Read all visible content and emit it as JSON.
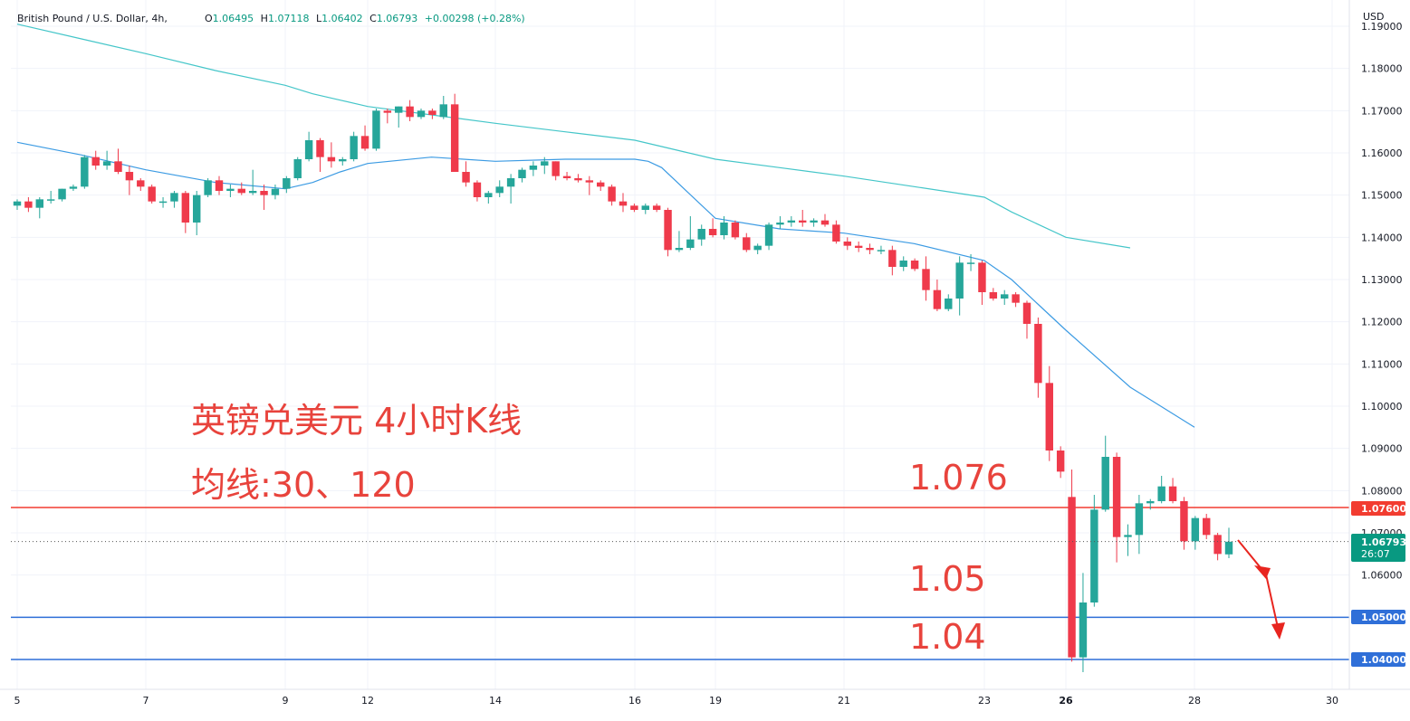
{
  "header": {
    "symbol_label": "British Pound / U.S. Dollar, 4h,",
    "ohlc": {
      "o_label": "O",
      "o_value": "1.06495",
      "h_label": "H",
      "h_value": "1.07118",
      "l_label": "L",
      "l_value": "1.06402",
      "c_label": "C",
      "c_value": "1.06793",
      "change": "+0.00298 (+0.28%)"
    },
    "currency": "USD"
  },
  "annotations": {
    "title": "英镑兑美元 4小时K线",
    "ma_note": "均线:30、120",
    "level_1076": "1.076",
    "level_105": "1.05",
    "level_104": "1.04"
  },
  "price_tags": {
    "level_1076": "1.07600",
    "current_price": "1.06793",
    "countdown": "26:07",
    "level_105": "1.05000",
    "level_104": "1.04000"
  },
  "colors": {
    "up": "#26a69a",
    "down": "#ef3a4b",
    "ma30": "#3c9be3",
    "ma120": "#45c6c9",
    "resistance": "#f23c30",
    "support": "#2f6fd8",
    "annotation": "#e8433c"
  },
  "chart_data": {
    "type": "candlestick",
    "ylim": [
      1.0365,
      1.1915
    ],
    "ytick_labels": [
      "1.19000",
      "1.18000",
      "1.17000",
      "1.16000",
      "1.15000",
      "1.14000",
      "1.13000",
      "1.12000",
      "1.11000",
      "1.10000",
      "1.09000",
      "1.08000",
      "1.07000",
      "1.06000",
      "1.05000",
      "1.04000"
    ],
    "yticks": [
      1.19,
      1.18,
      1.17,
      1.16,
      1.15,
      1.14,
      1.13,
      1.12,
      1.11,
      1.1,
      1.09,
      1.08,
      1.07,
      1.06,
      1.05,
      1.04
    ],
    "xlim": [
      5,
      30.5
    ],
    "xticks": [
      5,
      7,
      9,
      12,
      14,
      16,
      19,
      21,
      23,
      26,
      28,
      30
    ],
    "xtick_labels": [
      "5",
      "7",
      "9",
      "12",
      "14",
      "16",
      "19",
      "21",
      "23",
      "26",
      "28",
      "30"
    ],
    "xtick_bold": [
      "26"
    ],
    "horizontal_lines": [
      {
        "value": 1.076,
        "role": "resistance"
      },
      {
        "value": 1.05,
        "role": "support"
      },
      {
        "value": 1.04,
        "role": "support"
      }
    ],
    "current_price": 1.06793,
    "candles": [
      {
        "o": 1.1475,
        "h": 1.149,
        "l": 1.1465,
        "c": 1.1485
      },
      {
        "o": 1.1485,
        "h": 1.1495,
        "l": 1.146,
        "c": 1.147
      },
      {
        "o": 1.147,
        "h": 1.1495,
        "l": 1.1445,
        "c": 1.149
      },
      {
        "o": 1.149,
        "h": 1.151,
        "l": 1.148,
        "c": 1.149
      },
      {
        "o": 1.149,
        "h": 1.1515,
        "l": 1.1485,
        "c": 1.1515
      },
      {
        "o": 1.1515,
        "h": 1.1525,
        "l": 1.151,
        "c": 1.152
      },
      {
        "o": 1.152,
        "h": 1.1595,
        "l": 1.1515,
        "c": 1.159
      },
      {
        "o": 1.159,
        "h": 1.1605,
        "l": 1.156,
        "c": 1.157
      },
      {
        "o": 1.157,
        "h": 1.1605,
        "l": 1.156,
        "c": 1.158
      },
      {
        "o": 1.158,
        "h": 1.161,
        "l": 1.155,
        "c": 1.1555
      },
      {
        "o": 1.1555,
        "h": 1.157,
        "l": 1.15,
        "c": 1.1535
      },
      {
        "o": 1.1535,
        "h": 1.154,
        "l": 1.151,
        "c": 1.152
      },
      {
        "o": 1.152,
        "h": 1.1525,
        "l": 1.148,
        "c": 1.1485
      },
      {
        "o": 1.1485,
        "h": 1.1495,
        "l": 1.147,
        "c": 1.1485
      },
      {
        "o": 1.1485,
        "h": 1.151,
        "l": 1.147,
        "c": 1.1505
      },
      {
        "o": 1.1505,
        "h": 1.151,
        "l": 1.141,
        "c": 1.1435
      },
      {
        "o": 1.1435,
        "h": 1.151,
        "l": 1.1405,
        "c": 1.15
      },
      {
        "o": 1.15,
        "h": 1.154,
        "l": 1.1495,
        "c": 1.1535
      },
      {
        "o": 1.1535,
        "h": 1.1545,
        "l": 1.15,
        "c": 1.151
      },
      {
        "o": 1.151,
        "h": 1.1525,
        "l": 1.1495,
        "c": 1.1515
      },
      {
        "o": 1.1515,
        "h": 1.153,
        "l": 1.15,
        "c": 1.1505
      },
      {
        "o": 1.1505,
        "h": 1.156,
        "l": 1.15,
        "c": 1.151
      },
      {
        "o": 1.151,
        "h": 1.1525,
        "l": 1.1465,
        "c": 1.15
      },
      {
        "o": 1.15,
        "h": 1.1525,
        "l": 1.149,
        "c": 1.1515
      },
      {
        "o": 1.1515,
        "h": 1.1545,
        "l": 1.1505,
        "c": 1.154
      },
      {
        "o": 1.154,
        "h": 1.159,
        "l": 1.1535,
        "c": 1.1585
      },
      {
        "o": 1.1585,
        "h": 1.165,
        "l": 1.158,
        "c": 1.163
      },
      {
        "o": 1.163,
        "h": 1.1635,
        "l": 1.1555,
        "c": 1.159
      },
      {
        "o": 1.159,
        "h": 1.1625,
        "l": 1.1565,
        "c": 1.158
      },
      {
        "o": 1.158,
        "h": 1.159,
        "l": 1.157,
        "c": 1.1585
      },
      {
        "o": 1.1585,
        "h": 1.165,
        "l": 1.158,
        "c": 1.164
      },
      {
        "o": 1.164,
        "h": 1.1665,
        "l": 1.1605,
        "c": 1.161
      },
      {
        "o": 1.161,
        "h": 1.1705,
        "l": 1.1605,
        "c": 1.17
      },
      {
        "o": 1.17,
        "h": 1.1705,
        "l": 1.167,
        "c": 1.1695
      },
      {
        "o": 1.1695,
        "h": 1.171,
        "l": 1.166,
        "c": 1.171
      },
      {
        "o": 1.171,
        "h": 1.1725,
        "l": 1.1675,
        "c": 1.1685
      },
      {
        "o": 1.1685,
        "h": 1.1705,
        "l": 1.168,
        "c": 1.17
      },
      {
        "o": 1.17,
        "h": 1.1705,
        "l": 1.168,
        "c": 1.169
      },
      {
        "o": 1.1685,
        "h": 1.1735,
        "l": 1.168,
        "c": 1.1715
      },
      {
        "o": 1.1715,
        "h": 1.174,
        "l": 1.1555,
        "c": 1.1555
      },
      {
        "o": 1.1555,
        "h": 1.158,
        "l": 1.152,
        "c": 1.153
      },
      {
        "o": 1.153,
        "h": 1.1535,
        "l": 1.1485,
        "c": 1.1495
      },
      {
        "o": 1.1495,
        "h": 1.151,
        "l": 1.148,
        "c": 1.1505
      },
      {
        "o": 1.1505,
        "h": 1.1535,
        "l": 1.1495,
        "c": 1.152
      },
      {
        "o": 1.152,
        "h": 1.155,
        "l": 1.148,
        "c": 1.154
      },
      {
        "o": 1.154,
        "h": 1.1565,
        "l": 1.153,
        "c": 1.156
      },
      {
        "o": 1.156,
        "h": 1.158,
        "l": 1.1545,
        "c": 1.157
      },
      {
        "o": 1.157,
        "h": 1.159,
        "l": 1.155,
        "c": 1.158
      },
      {
        "o": 1.158,
        "h": 1.158,
        "l": 1.1535,
        "c": 1.1545
      },
      {
        "o": 1.1545,
        "h": 1.1555,
        "l": 1.1535,
        "c": 1.154
      },
      {
        "o": 1.154,
        "h": 1.155,
        "l": 1.153,
        "c": 1.1535
      },
      {
        "o": 1.1535,
        "h": 1.1545,
        "l": 1.15,
        "c": 1.153
      },
      {
        "o": 1.153,
        "h": 1.1535,
        "l": 1.151,
        "c": 1.152
      },
      {
        "o": 1.152,
        "h": 1.1525,
        "l": 1.1475,
        "c": 1.1485
      },
      {
        "o": 1.1485,
        "h": 1.1505,
        "l": 1.146,
        "c": 1.1475
      },
      {
        "o": 1.1475,
        "h": 1.148,
        "l": 1.146,
        "c": 1.1465
      },
      {
        "o": 1.1465,
        "h": 1.148,
        "l": 1.1455,
        "c": 1.1475
      },
      {
        "o": 1.1475,
        "h": 1.148,
        "l": 1.146,
        "c": 1.1465
      },
      {
        "o": 1.1465,
        "h": 1.147,
        "l": 1.1355,
        "c": 1.137
      },
      {
        "o": 1.137,
        "h": 1.1415,
        "l": 1.1365,
        "c": 1.1375
      },
      {
        "o": 1.1375,
        "h": 1.145,
        "l": 1.137,
        "c": 1.1395
      },
      {
        "o": 1.1395,
        "h": 1.143,
        "l": 1.138,
        "c": 1.142
      },
      {
        "o": 1.142,
        "h": 1.1445,
        "l": 1.14,
        "c": 1.1405
      },
      {
        "o": 1.1405,
        "h": 1.145,
        "l": 1.1395,
        "c": 1.1435
      },
      {
        "o": 1.1435,
        "h": 1.144,
        "l": 1.1395,
        "c": 1.14
      },
      {
        "o": 1.14,
        "h": 1.141,
        "l": 1.1365,
        "c": 1.137
      },
      {
        "o": 1.137,
        "h": 1.1385,
        "l": 1.136,
        "c": 1.138
      },
      {
        "o": 1.138,
        "h": 1.1435,
        "l": 1.137,
        "c": 1.143
      },
      {
        "o": 1.143,
        "h": 1.145,
        "l": 1.142,
        "c": 1.1435
      },
      {
        "o": 1.1435,
        "h": 1.145,
        "l": 1.1425,
        "c": 1.144
      },
      {
        "o": 1.144,
        "h": 1.1465,
        "l": 1.1425,
        "c": 1.1435
      },
      {
        "o": 1.1435,
        "h": 1.1445,
        "l": 1.1425,
        "c": 1.144
      },
      {
        "o": 1.144,
        "h": 1.1455,
        "l": 1.1425,
        "c": 1.143
      },
      {
        "o": 1.143,
        "h": 1.144,
        "l": 1.1385,
        "c": 1.139
      },
      {
        "o": 1.139,
        "h": 1.14,
        "l": 1.137,
        "c": 1.138
      },
      {
        "o": 1.138,
        "h": 1.139,
        "l": 1.1365,
        "c": 1.1375
      },
      {
        "o": 1.1375,
        "h": 1.1385,
        "l": 1.136,
        "c": 1.137
      },
      {
        "o": 1.137,
        "h": 1.138,
        "l": 1.136,
        "c": 1.137
      },
      {
        "o": 1.137,
        "h": 1.138,
        "l": 1.131,
        "c": 1.133
      },
      {
        "o": 1.133,
        "h": 1.1355,
        "l": 1.132,
        "c": 1.1345
      },
      {
        "o": 1.1345,
        "h": 1.135,
        "l": 1.132,
        "c": 1.1325
      },
      {
        "o": 1.1325,
        "h": 1.1355,
        "l": 1.125,
        "c": 1.1275
      },
      {
        "o": 1.1275,
        "h": 1.13,
        "l": 1.1225,
        "c": 1.123
      },
      {
        "o": 1.123,
        "h": 1.1265,
        "l": 1.1225,
        "c": 1.1255
      },
      {
        "o": 1.1255,
        "h": 1.1355,
        "l": 1.1215,
        "c": 1.134
      },
      {
        "o": 1.134,
        "h": 1.136,
        "l": 1.132,
        "c": 1.134
      },
      {
        "o": 1.134,
        "h": 1.1345,
        "l": 1.124,
        "c": 1.127
      },
      {
        "o": 1.127,
        "h": 1.128,
        "l": 1.125,
        "c": 1.1255
      },
      {
        "o": 1.1255,
        "h": 1.1275,
        "l": 1.124,
        "c": 1.1265
      },
      {
        "o": 1.1265,
        "h": 1.127,
        "l": 1.1235,
        "c": 1.1245
      },
      {
        "o": 1.1245,
        "h": 1.125,
        "l": 1.116,
        "c": 1.1195
      },
      {
        "o": 1.1195,
        "h": 1.121,
        "l": 1.102,
        "c": 1.1055
      },
      {
        "o": 1.1055,
        "h": 1.1095,
        "l": 1.087,
        "c": 1.0895
      },
      {
        "o": 1.0895,
        "h": 1.0905,
        "l": 1.083,
        "c": 1.0845
      },
      {
        "o": 1.0785,
        "h": 1.085,
        "l": 1.0395,
        "c": 1.0405
      },
      {
        "o": 1.0405,
        "h": 1.0605,
        "l": 1.037,
        "c": 1.0535
      },
      {
        "o": 1.0535,
        "h": 1.079,
        "l": 1.0525,
        "c": 1.0755
      },
      {
        "o": 1.0755,
        "h": 1.093,
        "l": 1.075,
        "c": 1.088
      },
      {
        "o": 1.088,
        "h": 1.089,
        "l": 1.063,
        "c": 1.069
      },
      {
        "o": 1.069,
        "h": 1.072,
        "l": 1.0645,
        "c": 1.0695
      },
      {
        "o": 1.0695,
        "h": 1.079,
        "l": 1.065,
        "c": 1.077
      },
      {
        "o": 1.077,
        "h": 1.078,
        "l": 1.0755,
        "c": 1.0775
      },
      {
        "o": 1.0775,
        "h": 1.0835,
        "l": 1.077,
        "c": 1.081
      },
      {
        "o": 1.081,
        "h": 1.083,
        "l": 1.077,
        "c": 1.0775
      },
      {
        "o": 1.0775,
        "h": 1.0785,
        "l": 1.066,
        "c": 1.068
      },
      {
        "o": 1.068,
        "h": 1.074,
        "l": 1.066,
        "c": 1.0735
      },
      {
        "o": 1.0735,
        "h": 1.0745,
        "l": 1.0685,
        "c": 1.0695
      },
      {
        "o": 1.0695,
        "h": 1.07,
        "l": 1.0635,
        "c": 1.065
      },
      {
        "o": 1.0649,
        "h": 1.0712,
        "l": 1.064,
        "c": 1.0679
      }
    ],
    "ma30": [
      {
        "x": 5.0,
        "y": 1.1625
      },
      {
        "x": 6.0,
        "y": 1.1595
      },
      {
        "x": 7.0,
        "y": 1.156
      },
      {
        "x": 8.0,
        "y": 1.153
      },
      {
        "x": 9.0,
        "y": 1.1515
      },
      {
        "x": 10.0,
        "y": 1.153
      },
      {
        "x": 11.0,
        "y": 1.1555
      },
      {
        "x": 12.0,
        "y": 1.1575
      },
      {
        "x": 13.0,
        "y": 1.159
      },
      {
        "x": 14.0,
        "y": 1.158
      },
      {
        "x": 15.0,
        "y": 1.1585
      },
      {
        "x": 16.0,
        "y": 1.1585
      },
      {
        "x": 16.5,
        "y": 1.158
      },
      {
        "x": 17.0,
        "y": 1.1565
      },
      {
        "x": 18.0,
        "y": 1.1505
      },
      {
        "x": 19.0,
        "y": 1.1445
      },
      {
        "x": 20.0,
        "y": 1.142
      },
      {
        "x": 21.0,
        "y": 1.141
      },
      {
        "x": 22.0,
        "y": 1.1385
      },
      {
        "x": 23.0,
        "y": 1.1345
      },
      {
        "x": 24.0,
        "y": 1.13
      },
      {
        "x": 25.0,
        "y": 1.124
      },
      {
        "x": 26.0,
        "y": 1.118
      },
      {
        "x": 27.0,
        "y": 1.1045
      },
      {
        "x": 28.0,
        "y": 1.095
      }
    ],
    "ma120": [
      {
        "x": 5.0,
        "y": 1.1905
      },
      {
        "x": 6.0,
        "y": 1.187
      },
      {
        "x": 7.0,
        "y": 1.1835
      },
      {
        "x": 8.0,
        "y": 1.1795
      },
      {
        "x": 9.0,
        "y": 1.176
      },
      {
        "x": 10.0,
        "y": 1.174
      },
      {
        "x": 11.0,
        "y": 1.1725
      },
      {
        "x": 12.0,
        "y": 1.171
      },
      {
        "x": 13.0,
        "y": 1.169
      },
      {
        "x": 14.0,
        "y": 1.167
      },
      {
        "x": 15.0,
        "y": 1.165
      },
      {
        "x": 16.0,
        "y": 1.163
      },
      {
        "x": 17.0,
        "y": 1.1615
      },
      {
        "x": 18.0,
        "y": 1.16
      },
      {
        "x": 19.0,
        "y": 1.1585
      },
      {
        "x": 20.0,
        "y": 1.1565
      },
      {
        "x": 21.0,
        "y": 1.1545
      },
      {
        "x": 22.0,
        "y": 1.152
      },
      {
        "x": 23.0,
        "y": 1.1495
      },
      {
        "x": 24.0,
        "y": 1.146
      },
      {
        "x": 25.0,
        "y": 1.143
      },
      {
        "x": 26.0,
        "y": 1.14
      },
      {
        "x": 27.0,
        "y": 1.1375
      }
    ]
  }
}
